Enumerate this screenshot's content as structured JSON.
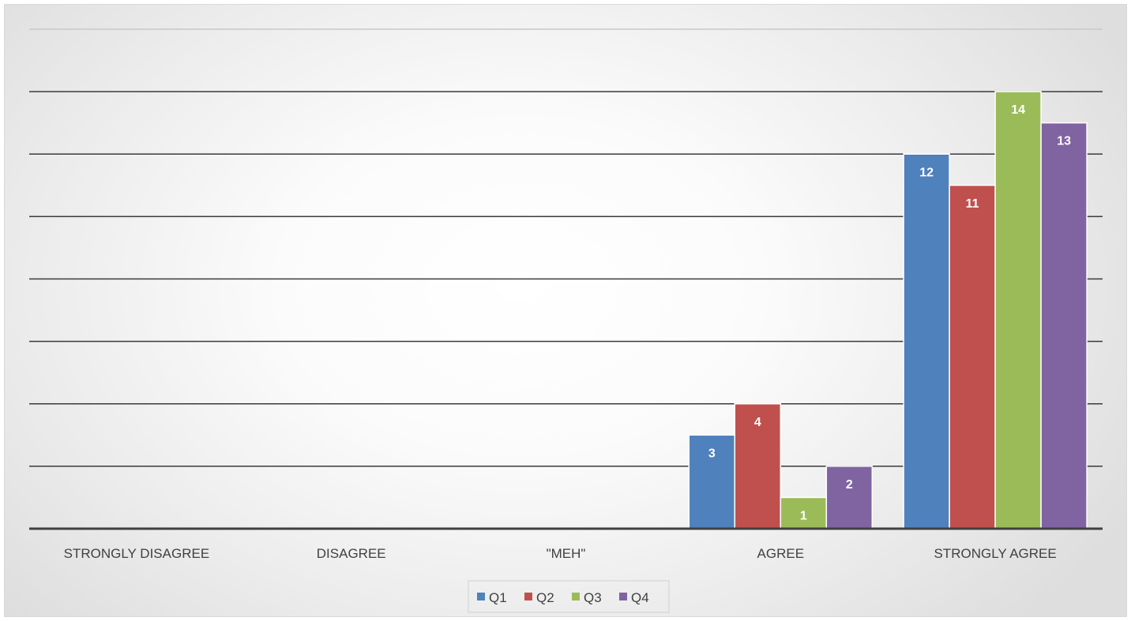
{
  "chart_data": {
    "type": "bar",
    "title": "",
    "xlabel": "",
    "ylabel": "",
    "categories": [
      "STRONGLY DISAGREE",
      "DISAGREE",
      "\"MEH\"",
      "AGREE",
      "STRONGLY AGREE"
    ],
    "series": [
      {
        "name": "Q1",
        "color": "#4f81bd",
        "values": [
          0,
          0,
          0,
          3,
          12
        ]
      },
      {
        "name": "Q2",
        "color": "#c0504d",
        "values": [
          0,
          0,
          0,
          4,
          11
        ]
      },
      {
        "name": "Q3",
        "color": "#9bbb59",
        "values": [
          0,
          0,
          0,
          1,
          14
        ]
      },
      {
        "name": "Q4",
        "color": "#8064a2",
        "values": [
          0,
          0,
          0,
          2,
          13
        ]
      }
    ],
    "ylim": [
      0,
      16
    ],
    "y_major_unit": 2,
    "grid": true,
    "data_labels": true,
    "legend": "bottom"
  }
}
